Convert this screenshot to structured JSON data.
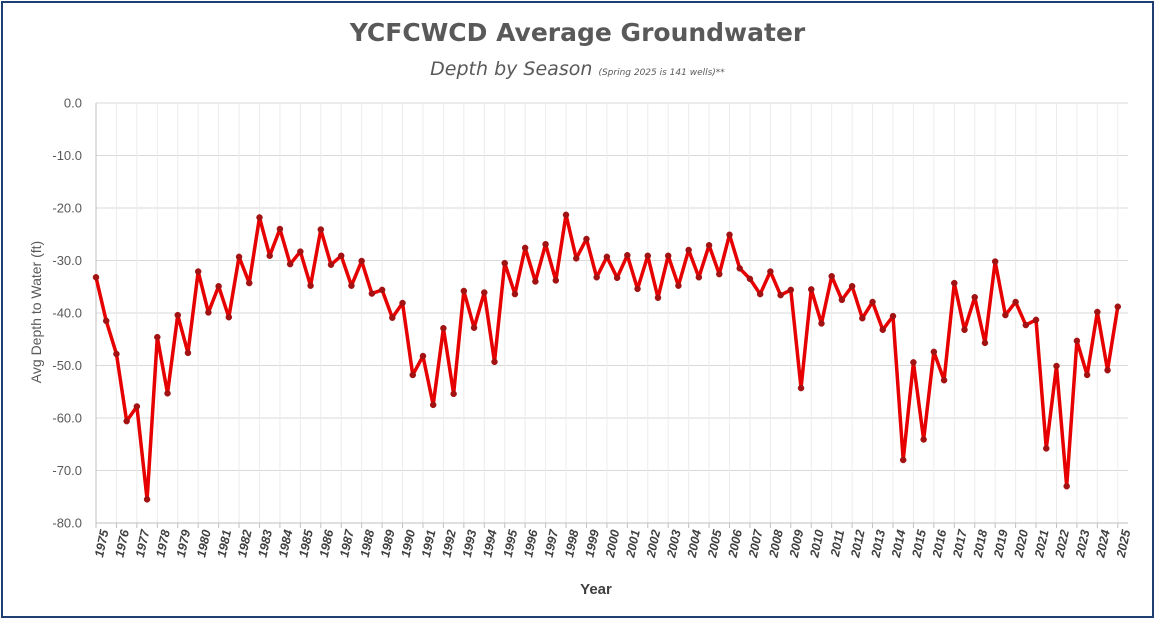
{
  "chart_data": {
    "type": "line",
    "title": "YCFCWCD Average Groundwater",
    "subtitle": "Depth by Season",
    "subtitle_note": "(Spring 2025 is 141 wells)**",
    "xlabel": "Year",
    "ylabel": "Avg Depth to Water (ft)",
    "ylim": [
      -80,
      0
    ],
    "y_ticks": [
      "0.0",
      "-10.0",
      "-20.0",
      "-30.0",
      "-40.0",
      "-50.0",
      "-60.0",
      "-70.0",
      "-80.0"
    ],
    "x_tick_labels": [
      "1975",
      "1976",
      "1977",
      "1978",
      "1979",
      "1980",
      "1981",
      "1982",
      "1983",
      "1984",
      "1985",
      "1986",
      "1987",
      "1988",
      "1989",
      "1990",
      "1991",
      "1992",
      "1993",
      "1994",
      "1995",
      "1996",
      "1997",
      "1998",
      "1999",
      "2000",
      "2001",
      "2002",
      "2003",
      "2004",
      "2005",
      "2006",
      "2007",
      "2008",
      "2009",
      "2010",
      "2011",
      "2012",
      "2013",
      "2014",
      "2015",
      "2016",
      "2017",
      "2018",
      "2019",
      "2020",
      "2021",
      "2022",
      "2023",
      "2024",
      "2025"
    ],
    "grid": true,
    "series": [
      {
        "color": "#e60000",
        "values": [
          -33.2,
          -41.5,
          -47.8,
          -60.6,
          -57.8,
          -75.5,
          -44.6,
          -55.3,
          -40.4,
          -47.6,
          -32.1,
          -39.9,
          -34.9,
          -40.8,
          -29.3,
          -34.3,
          -21.8,
          -29.1,
          -24.0,
          -30.7,
          -28.3,
          -34.8,
          -24.1,
          -30.8,
          -29.1,
          -34.8,
          -30.1,
          -36.3,
          -35.6,
          -40.9,
          -38.1,
          -51.8,
          -48.2,
          -57.5,
          -42.9,
          -55.4,
          -35.8,
          -42.8,
          -36.1,
          -49.3,
          -30.5,
          -36.4,
          -27.6,
          -34.0,
          -26.9,
          -33.8,
          -21.3,
          -29.6,
          -25.9,
          -33.2,
          -29.3,
          -33.3,
          -29.0,
          -35.4,
          -29.1,
          -37.1,
          -29.1,
          -34.8,
          -28.0,
          -33.2,
          -27.1,
          -32.6,
          -25.1,
          -31.5,
          -33.5,
          -36.4,
          -32.1,
          -36.6,
          -35.6,
          -54.3,
          -35.5,
          -42.0,
          -33.0,
          -37.5,
          -34.9,
          -41.0,
          -37.9,
          -43.2,
          -40.6,
          -68.0,
          -49.4,
          -64.1,
          -47.4,
          -52.8,
          -34.3,
          -43.2,
          -37.0,
          -45.7,
          -30.2,
          -40.4,
          -37.9,
          -42.3,
          -41.3,
          -65.8,
          -50.1,
          -73.0,
          -45.3,
          -51.8,
          -39.8,
          -50.9,
          -38.8
        ]
      }
    ]
  }
}
